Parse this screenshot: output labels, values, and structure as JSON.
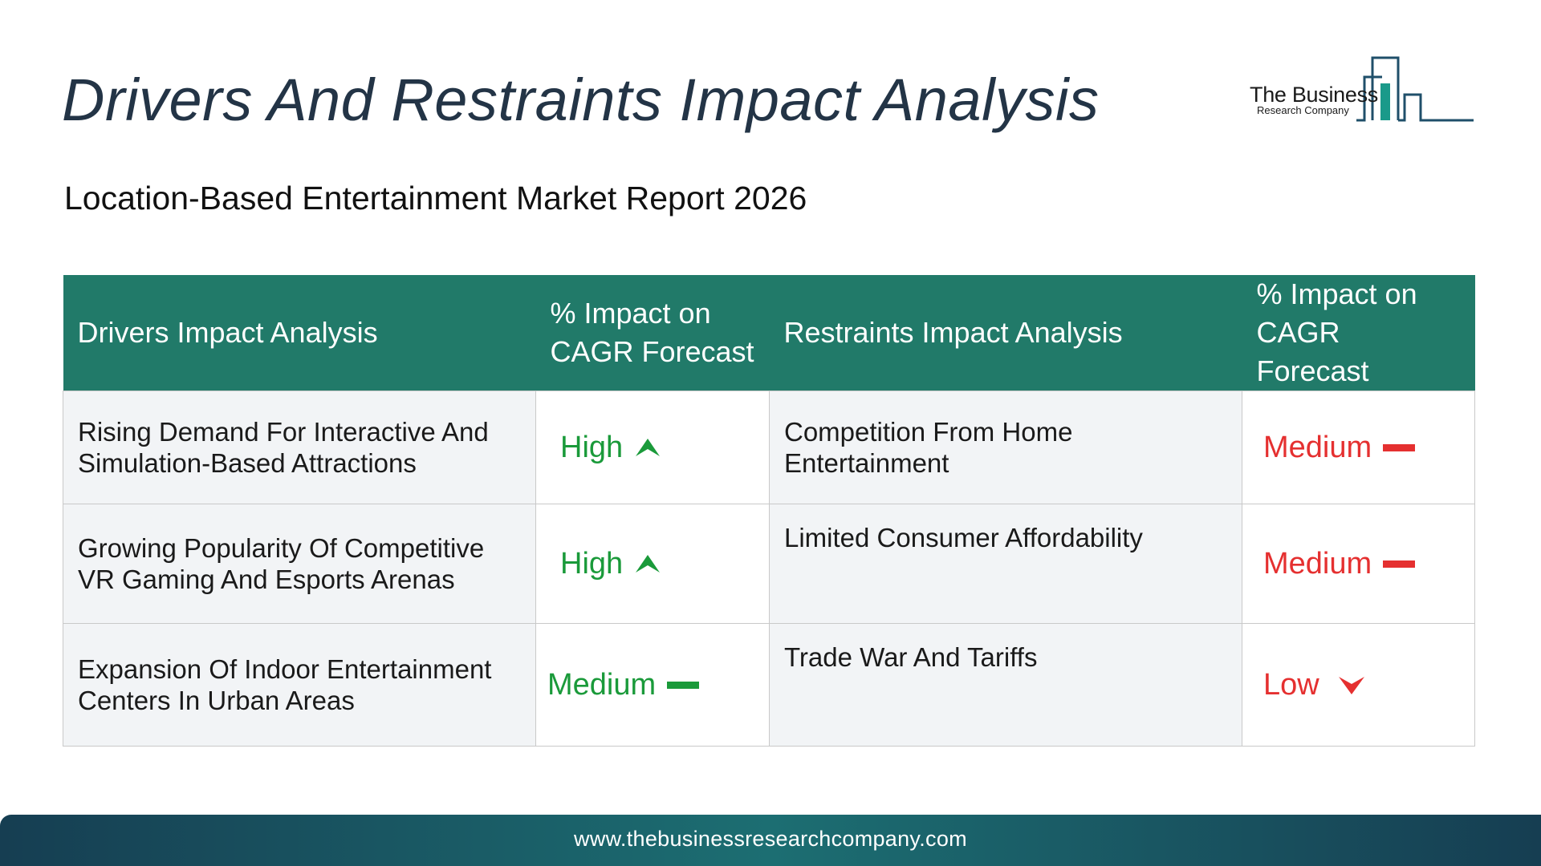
{
  "title": "Drivers And Restraints Impact Analysis",
  "subtitle": "Location-Based Entertainment Market Report 2026",
  "logo": {
    "line1": "The Business",
    "line2": "Research Company"
  },
  "table": {
    "headers": {
      "drivers": "Drivers Impact Analysis",
      "drivers_impact": "% Impact on CAGR Forecast",
      "restraints": "Restraints Impact Analysis",
      "restraints_impact": "% Impact on CAGR Forecast"
    },
    "rows": [
      {
        "driver": "Rising Demand For Interactive And Simulation-Based Attractions",
        "driver_impact": "High",
        "driver_icon": "arrow-up-icon",
        "restraint": "Competition From Home Entertainment",
        "restraint_impact": "Medium",
        "restraint_icon": "dash-icon"
      },
      {
        "driver": "Growing Popularity Of Competitive VR Gaming And Esports Arenas",
        "driver_impact": "High",
        "driver_icon": "arrow-up-icon",
        "restraint": "Limited Consumer Affordability",
        "restraint_impact": "Medium",
        "restraint_icon": "dash-icon"
      },
      {
        "driver": "Expansion Of Indoor Entertainment Centers In Urban Areas",
        "driver_impact": "Medium",
        "driver_icon": "dash-icon",
        "restraint": "Trade War And Tariffs",
        "restraint_impact": "Low",
        "restraint_icon": "arrow-down-icon"
      }
    ]
  },
  "footer": {
    "url": "www.thebusinessresearchcompany.com"
  },
  "colors": {
    "header_bg": "#217a69",
    "title": "#233446",
    "positive": "#1a9a3a",
    "negative": "#e53030",
    "footer_start": "#163e52",
    "footer_mid": "#1c6e72"
  }
}
